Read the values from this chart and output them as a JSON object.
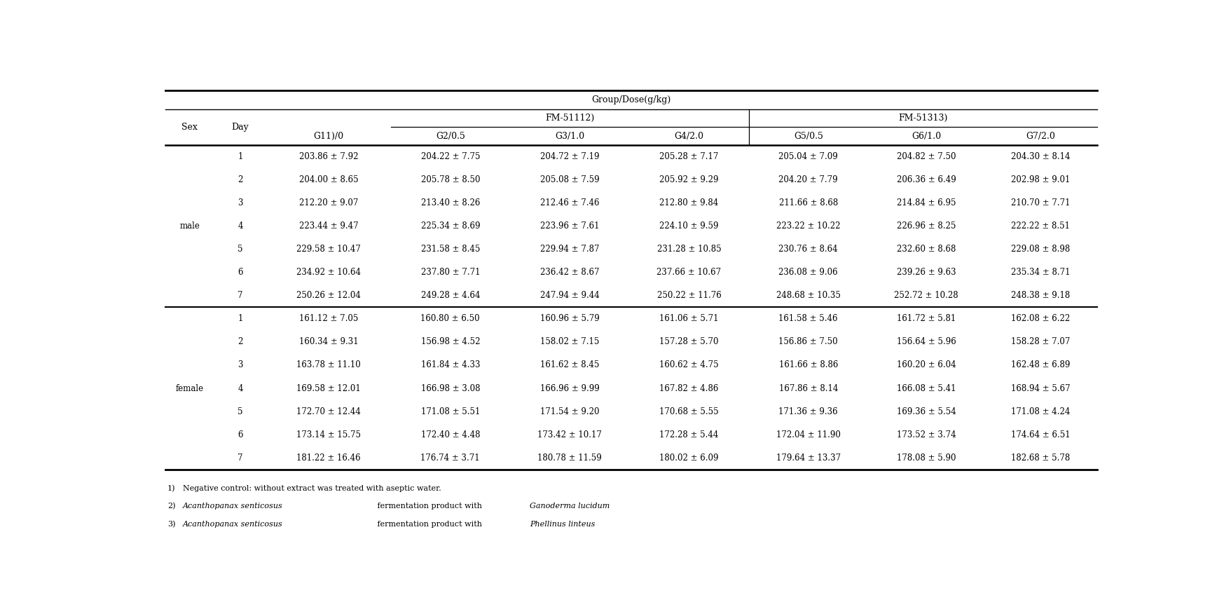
{
  "title": "Group/Dose(g/kg)",
  "fm5111_label": "FM-5111",
  "fm5111_super": "2)",
  "fm5131_label": "FM-5131",
  "fm5131_super": "3)",
  "col_g1": "G1",
  "col_g1_super": "1)",
  "col_g1_suffix": "/0",
  "col_headers": [
    "G2/0.5",
    "G3/1.0",
    "G4/2.0",
    "G5/0.5",
    "G6/1.0",
    "G7/2.0"
  ],
  "sex_label": "Sex",
  "day_label": "Day",
  "male_label": "male",
  "female_label": "female",
  "male_rows": [
    [
      1,
      "203.86 ± 7.92",
      "204.22 ± 7.75",
      "204.72 ± 7.19",
      "205.28 ± 7.17",
      "205.04 ± 7.09",
      "204.82 ± 7.50",
      "204.30 ± 8.14"
    ],
    [
      2,
      "204.00 ± 8.65",
      "205.78 ± 8.50",
      "205.08 ± 7.59",
      "205.92 ± 9.29",
      "204.20 ± 7.79",
      "206.36 ± 6.49",
      "202.98 ± 9.01"
    ],
    [
      3,
      "212.20 ± 9.07",
      "213.40 ± 8.26",
      "212.46 ± 7.46",
      "212.80 ± 9.84",
      "211.66 ± 8.68",
      "214.84 ± 6.95",
      "210.70 ± 7.71"
    ],
    [
      4,
      "223.44 ± 9.47",
      "225.34 ± 8.69",
      "223.96 ± 7.61",
      "224.10 ± 9.59",
      "223.22 ± 10.22",
      "226.96 ± 8.25",
      "222.22 ± 8.51"
    ],
    [
      5,
      "229.58 ± 10.47",
      "231.58 ± 8.45",
      "229.94 ± 7.87",
      "231.28 ± 10.85",
      "230.76 ± 8.64",
      "232.60 ± 8.68",
      "229.08 ± 8.98"
    ],
    [
      6,
      "234.92 ± 10.64",
      "237.80 ± 7.71",
      "236.42 ± 8.67",
      "237.66 ± 10.67",
      "236.08 ± 9.06",
      "239.26 ± 9.63",
      "235.34 ± 8.71"
    ],
    [
      7,
      "250.26 ± 12.04",
      "249.28 ± 4.64",
      "247.94 ± 9.44",
      "250.22 ± 11.76",
      "248.68 ± 10.35",
      "252.72 ± 10.28",
      "248.38 ± 9.18"
    ]
  ],
  "female_rows": [
    [
      1,
      "161.12 ± 7.05",
      "160.80 ± 6.50",
      "160.96 ± 5.79",
      "161.06 ± 5.71",
      "161.58 ± 5.46",
      "161.72 ± 5.81",
      "162.08 ± 6.22"
    ],
    [
      2,
      "160.34 ± 9.31",
      "156.98 ± 4.52",
      "158.02 ± 7.15",
      "157.28 ± 5.70",
      "156.86 ± 7.50",
      "156.64 ± 5.96",
      "158.28 ± 7.07"
    ],
    [
      3,
      "163.78 ± 11.10",
      "161.84 ± 4.33",
      "161.62 ± 8.45",
      "160.62 ± 4.75",
      "161.66 ± 8.86",
      "160.20 ± 6.04",
      "162.48 ± 6.89"
    ],
    [
      4,
      "169.58 ± 12.01",
      "166.98 ± 3.08",
      "166.96 ± 9.99",
      "167.82 ± 4.86",
      "167.86 ± 8.14",
      "166.08 ± 5.41",
      "168.94 ± 5.67"
    ],
    [
      5,
      "172.70 ± 12.44",
      "171.08 ± 5.51",
      "171.54 ± 9.20",
      "170.68 ± 5.55",
      "171.36 ± 9.36",
      "169.36 ± 5.54",
      "171.08 ± 4.24"
    ],
    [
      6,
      "173.14 ± 15.75",
      "172.40 ± 4.48",
      "173.42 ± 10.17",
      "172.28 ± 5.44",
      "172.04 ± 11.90",
      "173.52 ± 3.74",
      "174.64 ± 6.51"
    ],
    [
      7,
      "181.22 ± 16.46",
      "176.74 ± 3.71",
      "180.78 ± 11.59",
      "180.02 ± 6.09",
      "179.64 ± 13.37",
      "178.08 ± 5.90",
      "182.68 ± 5.78"
    ]
  ],
  "fn1_normal": "Negative control: without extract was treated with aseptic water.",
  "fn2_normal": " fermentation product with ",
  "fn2_italic_species": "Acanthopanax senticosus",
  "fn2_italic_organism": "Ganoderma lucidum",
  "fn3_italic_organism": "Phellinus linteus",
  "fn_prefix_super1": "1)",
  "fn_prefix_super2": "2)",
  "fn_prefix_super3": "3)",
  "bg_color": "#ffffff",
  "text_color": "#000000"
}
